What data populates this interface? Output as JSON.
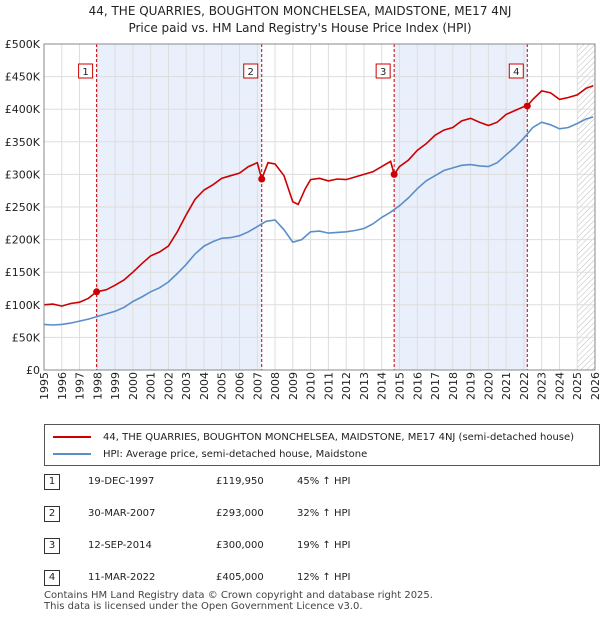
{
  "title_line1": "44, THE QUARRIES, BOUGHTON MONCHELSEA, MAIDSTONE, ME17 4NJ",
  "title_line2": "Price paid vs. HM Land Registry's House Price Index (HPI)",
  "colors": {
    "property": "#cc0000",
    "hpi": "#5b8ec9",
    "marker_line": "#cc0000",
    "shade": "#eaf0fb",
    "grid": "#dddddd"
  },
  "chart_data": {
    "type": "line",
    "xlim": [
      1995,
      2026
    ],
    "ylim": [
      0,
      500000
    ],
    "x_ticks": [
      1995,
      1996,
      1997,
      1998,
      1999,
      2000,
      2001,
      2002,
      2003,
      2004,
      2005,
      2006,
      2007,
      2008,
      2009,
      2010,
      2011,
      2012,
      2013,
      2014,
      2015,
      2016,
      2017,
      2018,
      2019,
      2020,
      2021,
      2022,
      2023,
      2024,
      2025,
      2026
    ],
    "y_ticks": [
      {
        "value": 0,
        "label": "£0"
      },
      {
        "value": 50000,
        "label": "£50K"
      },
      {
        "value": 100000,
        "label": "£100K"
      },
      {
        "value": 150000,
        "label": "£150K"
      },
      {
        "value": 200000,
        "label": "£200K"
      },
      {
        "value": 250000,
        "label": "£250K"
      },
      {
        "value": 300000,
        "label": "£300K"
      },
      {
        "value": 350000,
        "label": "£350K"
      },
      {
        "value": 400000,
        "label": "£400K"
      },
      {
        "value": 450000,
        "label": "£450K"
      },
      {
        "value": 500000,
        "label": "£500K"
      }
    ],
    "shaded_ranges": [
      [
        1997.96,
        2007.25
      ],
      [
        2014.7,
        2022.19
      ]
    ],
    "hatched_from": 2025.0,
    "series": [
      {
        "name": "44, THE QUARRIES, BOUGHTON MONCHELSEA, MAIDSTONE, ME17 4NJ (semi-detached house)",
        "color": "#cc0000",
        "points": [
          [
            1995.0,
            100000
          ],
          [
            1995.5,
            101000
          ],
          [
            1996.0,
            98000
          ],
          [
            1996.5,
            102000
          ],
          [
            1997.0,
            104000
          ],
          [
            1997.5,
            110000
          ],
          [
            1997.96,
            119950
          ],
          [
            1998.5,
            123000
          ],
          [
            1999.0,
            130000
          ],
          [
            1999.5,
            138000
          ],
          [
            2000.0,
            150000
          ],
          [
            2000.5,
            163000
          ],
          [
            2001.0,
            175000
          ],
          [
            2001.5,
            181000
          ],
          [
            2002.0,
            190000
          ],
          [
            2002.5,
            212000
          ],
          [
            2003.0,
            238000
          ],
          [
            2003.5,
            262000
          ],
          [
            2004.0,
            276000
          ],
          [
            2004.5,
            284000
          ],
          [
            2005.0,
            294000
          ],
          [
            2005.5,
            298000
          ],
          [
            2006.0,
            302000
          ],
          [
            2006.5,
            312000
          ],
          [
            2007.0,
            318000
          ],
          [
            2007.25,
            293000
          ],
          [
            2007.6,
            318000
          ],
          [
            2008.0,
            316000
          ],
          [
            2008.5,
            298000
          ],
          [
            2009.0,
            258000
          ],
          [
            2009.3,
            254000
          ],
          [
            2009.7,
            278000
          ],
          [
            2010.0,
            292000
          ],
          [
            2010.5,
            294000
          ],
          [
            2011.0,
            290000
          ],
          [
            2011.5,
            293000
          ],
          [
            2012.0,
            292000
          ],
          [
            2012.5,
            296000
          ],
          [
            2013.0,
            300000
          ],
          [
            2013.5,
            304000
          ],
          [
            2014.0,
            312000
          ],
          [
            2014.5,
            320000
          ],
          [
            2014.7,
            300000
          ],
          [
            2015.0,
            312000
          ],
          [
            2015.5,
            322000
          ],
          [
            2016.0,
            337000
          ],
          [
            2016.5,
            347000
          ],
          [
            2017.0,
            360000
          ],
          [
            2017.5,
            368000
          ],
          [
            2018.0,
            372000
          ],
          [
            2018.5,
            382000
          ],
          [
            2019.0,
            386000
          ],
          [
            2019.5,
            380000
          ],
          [
            2020.0,
            375000
          ],
          [
            2020.5,
            380000
          ],
          [
            2021.0,
            392000
          ],
          [
            2021.5,
            398000
          ],
          [
            2022.0,
            404000
          ],
          [
            2022.19,
            405000
          ],
          [
            2022.5,
            415000
          ],
          [
            2023.0,
            428000
          ],
          [
            2023.5,
            425000
          ],
          [
            2024.0,
            415000
          ],
          [
            2024.5,
            418000
          ],
          [
            2025.0,
            422000
          ],
          [
            2025.5,
            432000
          ],
          [
            2025.9,
            436000
          ]
        ]
      },
      {
        "name": "HPI: Average price, semi-detached house, Maidstone",
        "color": "#5b8ec9",
        "points": [
          [
            1995.0,
            70000
          ],
          [
            1995.5,
            69000
          ],
          [
            1996.0,
            70000
          ],
          [
            1996.5,
            72000
          ],
          [
            1997.0,
            75000
          ],
          [
            1997.5,
            78000
          ],
          [
            1998.0,
            82000
          ],
          [
            1998.5,
            86000
          ],
          [
            1999.0,
            90000
          ],
          [
            1999.5,
            96000
          ],
          [
            2000.0,
            105000
          ],
          [
            2000.5,
            112000
          ],
          [
            2001.0,
            120000
          ],
          [
            2001.5,
            126000
          ],
          [
            2002.0,
            135000
          ],
          [
            2002.5,
            148000
          ],
          [
            2003.0,
            162000
          ],
          [
            2003.5,
            178000
          ],
          [
            2004.0,
            190000
          ],
          [
            2004.5,
            197000
          ],
          [
            2005.0,
            202000
          ],
          [
            2005.5,
            203000
          ],
          [
            2006.0,
            206000
          ],
          [
            2006.5,
            212000
          ],
          [
            2007.0,
            220000
          ],
          [
            2007.5,
            228000
          ],
          [
            2008.0,
            230000
          ],
          [
            2008.5,
            215000
          ],
          [
            2009.0,
            196000
          ],
          [
            2009.5,
            200000
          ],
          [
            2010.0,
            212000
          ],
          [
            2010.5,
            213000
          ],
          [
            2011.0,
            210000
          ],
          [
            2011.5,
            211000
          ],
          [
            2012.0,
            212000
          ],
          [
            2012.5,
            214000
          ],
          [
            2013.0,
            217000
          ],
          [
            2013.5,
            224000
          ],
          [
            2014.0,
            234000
          ],
          [
            2014.5,
            242000
          ],
          [
            2015.0,
            252000
          ],
          [
            2015.5,
            264000
          ],
          [
            2016.0,
            278000
          ],
          [
            2016.5,
            290000
          ],
          [
            2017.0,
            298000
          ],
          [
            2017.5,
            306000
          ],
          [
            2018.0,
            310000
          ],
          [
            2018.5,
            314000
          ],
          [
            2019.0,
            315000
          ],
          [
            2019.5,
            313000
          ],
          [
            2020.0,
            312000
          ],
          [
            2020.5,
            318000
          ],
          [
            2021.0,
            330000
          ],
          [
            2021.5,
            342000
          ],
          [
            2022.0,
            356000
          ],
          [
            2022.5,
            372000
          ],
          [
            2023.0,
            380000
          ],
          [
            2023.5,
            376000
          ],
          [
            2024.0,
            370000
          ],
          [
            2024.5,
            372000
          ],
          [
            2025.0,
            378000
          ],
          [
            2025.5,
            385000
          ],
          [
            2025.9,
            388000
          ]
        ]
      }
    ],
    "sales": [
      {
        "label": "1",
        "x": 1997.96,
        "price": 119950
      },
      {
        "label": "2",
        "x": 2007.25,
        "price": 293000
      },
      {
        "label": "3",
        "x": 2014.7,
        "price": 300000
      },
      {
        "label": "4",
        "x": 2022.19,
        "price": 405000
      }
    ]
  },
  "legend": {
    "property_label": "44, THE QUARRIES, BOUGHTON MONCHELSEA, MAIDSTONE, ME17 4NJ (semi-detached house)",
    "hpi_label": "HPI: Average price, semi-detached house, Maidstone"
  },
  "sales_table": [
    {
      "num": "1",
      "date": "19-DEC-1997",
      "price": "£119,950",
      "hpi": "45% ↑ HPI"
    },
    {
      "num": "2",
      "date": "30-MAR-2007",
      "price": "£293,000",
      "hpi": "32% ↑ HPI"
    },
    {
      "num": "3",
      "date": "12-SEP-2014",
      "price": "£300,000",
      "hpi": "19% ↑ HPI"
    },
    {
      "num": "4",
      "date": "11-MAR-2022",
      "price": "£405,000",
      "hpi": "12% ↑ HPI"
    }
  ],
  "footer_line1": "Contains HM Land Registry data © Crown copyright and database right 2025.",
  "footer_line2": "This data is licensed under the Open Government Licence v3.0."
}
